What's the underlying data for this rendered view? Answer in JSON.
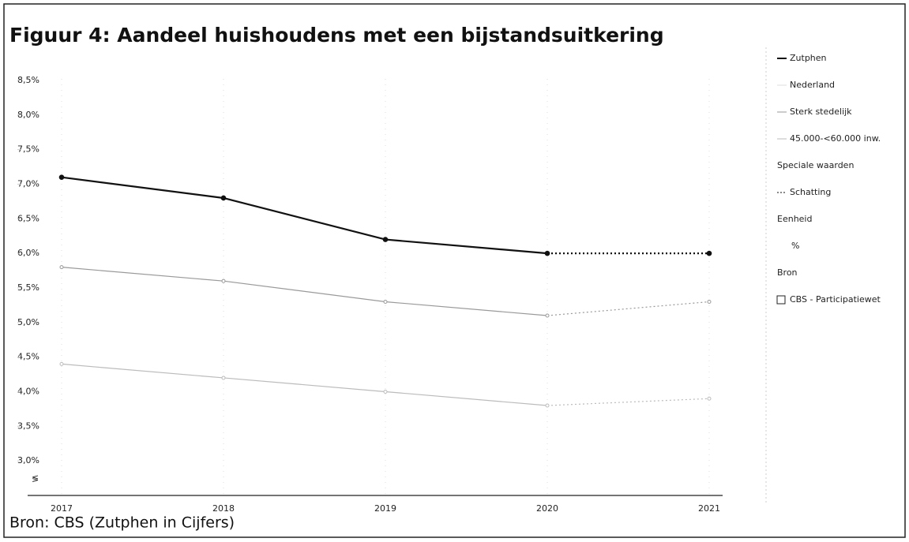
{
  "chart_data": {
    "type": "line",
    "title": "Figuur 4: Aandeel huishoudens met een bijstandsuitkering",
    "source": "Bron: CBS (Zutphen in Cijfers)",
    "categories": [
      "2017",
      "2018",
      "2019",
      "2020",
      "2021"
    ],
    "estimated": [
      false,
      false,
      false,
      false,
      true
    ],
    "series": [
      {
        "name": "Zutphen",
        "color": "#111111",
        "values": [
          7.1,
          6.8,
          6.2,
          6.0,
          6.0
        ]
      },
      {
        "name": "Nederland",
        "color": "#dddddd",
        "values": [
          null,
          null,
          null,
          null,
          null
        ]
      },
      {
        "name": "Sterk stedelijk",
        "color": "#999999",
        "values": [
          5.8,
          5.6,
          5.3,
          5.1,
          5.3
        ]
      },
      {
        "name": "45.000-<60.000 inw.",
        "color": "#bbbbbb",
        "values": [
          4.4,
          4.2,
          4.0,
          3.8,
          3.9
        ]
      }
    ],
    "ylim": [
      2.5,
      8.75
    ],
    "yticks": [
      {
        "value": 3.0,
        "label": "3,0%"
      },
      {
        "value": 3.5,
        "label": "3,5%"
      },
      {
        "value": 4.0,
        "label": "4,0%"
      },
      {
        "value": 4.5,
        "label": "4,5%"
      },
      {
        "value": 5.0,
        "label": "5,0%"
      },
      {
        "value": 5.5,
        "label": "5,5%"
      },
      {
        "value": 6.0,
        "label": "6,0%"
      },
      {
        "value": 6.5,
        "label": "6,5%"
      },
      {
        "value": 7.0,
        "label": "7,0%"
      },
      {
        "value": 7.5,
        "label": "7,5%"
      },
      {
        "value": 8.0,
        "label": "8,0%"
      },
      {
        "value": 8.5,
        "label": "8,5%"
      }
    ],
    "grid": true,
    "legend_extra": [
      {
        "heading": "Speciale waarden",
        "item": "Schatting"
      },
      {
        "heading": "Eenheid",
        "item": "%"
      },
      {
        "heading": "Bron",
        "item": "CBS - Participatiewet"
      }
    ]
  }
}
